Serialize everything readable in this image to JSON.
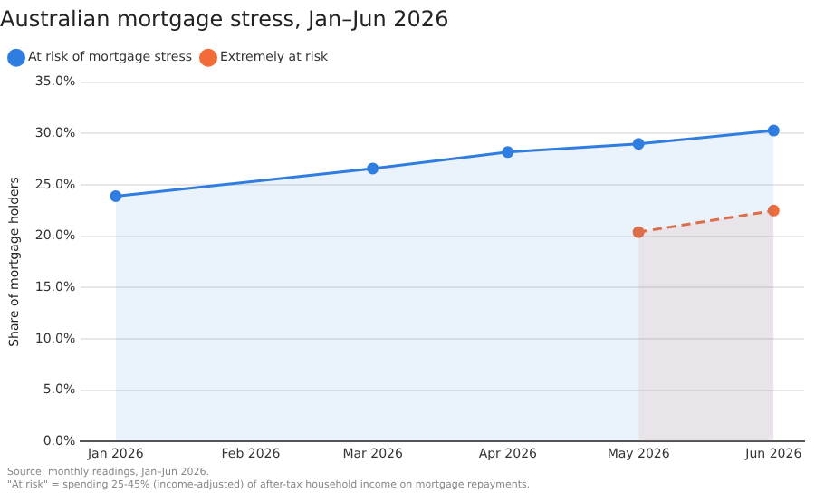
{
  "chart_data": {
    "type": "area",
    "title": "Australian mortgage stress, Jan–Jun 2026",
    "ylabel": "Share of mortgage holders",
    "xlim": [
      "2025-12-24",
      "2026-06-08"
    ],
    "xticks": [
      {
        "value": "2026-01",
        "label": "Jan 2026"
      },
      {
        "value": "2026-02",
        "label": "Feb 2026"
      },
      {
        "value": "2026-03",
        "label": "Mar 2026"
      },
      {
        "value": "2026-04",
        "label": "Apr 2026"
      },
      {
        "value": "2026-05",
        "label": "May 2026"
      },
      {
        "value": "2026-06",
        "label": "Jun 2026"
      }
    ],
    "ylim": [
      0,
      35
    ],
    "yticks": [
      {
        "value": 0,
        "label": "0.0%"
      },
      {
        "value": 5,
        "label": "5.0%"
      },
      {
        "value": 10,
        "label": "10.0%"
      },
      {
        "value": 15,
        "label": "15.0%"
      },
      {
        "value": 20,
        "label": "20.0%"
      },
      {
        "value": 25,
        "label": "25.0%"
      },
      {
        "value": 30,
        "label": "30.0%"
      },
      {
        "value": 35,
        "label": "35.0%"
      }
    ],
    "series": [
      {
        "name": "At risk of mortgage stress",
        "color": "#2f7de1",
        "x": [
          "2026-01",
          "2026-03",
          "2026-04",
          "2026-05",
          "2026-06"
        ],
        "values": [
          23.9,
          26.6,
          28.2,
          29.0,
          30.3
        ],
        "line_style": "solid"
      },
      {
        "name": "Extremely at risk",
        "color": "#f26b38",
        "x": [
          "2026-05",
          "2026-06"
        ],
        "values": [
          20.4,
          22.5
        ],
        "line_style": "dashed"
      }
    ],
    "grid": "y",
    "legend": "top left",
    "marker": "circle",
    "annotations": [
      "Source: monthly readings, Jan–Jun 2026.",
      "\"At risk\" = spending 25-45% (income-adjusted) of after-tax household income on mortgage repayments."
    ]
  }
}
